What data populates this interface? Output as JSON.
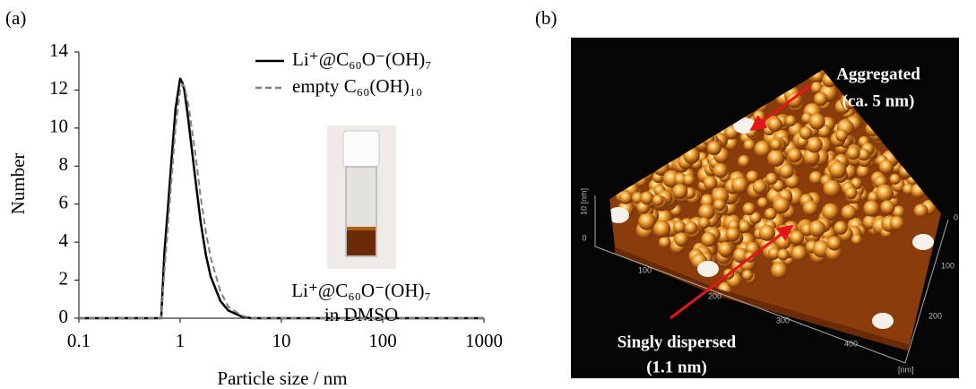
{
  "panel_labels": [
    "(a)",
    "(b)"
  ],
  "chart_data": {
    "type": "line",
    "x_label": "Particle size / nm",
    "y_label": "Number",
    "x": [
      0.1,
      0.6,
      0.65,
      0.7,
      0.75,
      0.8,
      0.9,
      1.0,
      1.05,
      1.1,
      1.2,
      1.4,
      1.6,
      1.8,
      2.0,
      2.5,
      3,
      4,
      5,
      10,
      100,
      1000
    ],
    "series": [
      {
        "name": "Li⁺@C₆₀O⁻(OH)₇",
        "color": "#000000",
        "dash": "solid",
        "values": [
          0,
          0,
          0,
          3.5,
          5.5,
          7.5,
          11,
          12.6,
          12.4,
          12,
          10.5,
          7.5,
          5,
          3.3,
          2.2,
          0.9,
          0.4,
          0.1,
          0,
          0,
          0,
          0
        ]
      },
      {
        "name": "empty C₆₀(OH)₁₀",
        "color": "#808080",
        "dash": "dashed",
        "values": [
          0,
          0,
          0,
          2.5,
          4.5,
          6.5,
          10,
          12,
          12.3,
          12.2,
          11.3,
          8.8,
          6.3,
          4.5,
          3.2,
          1.4,
          0.6,
          0.15,
          0,
          0,
          0,
          0
        ]
      }
    ],
    "x_scale": "log",
    "xlim": [
      0.1,
      1000
    ],
    "xticks": [
      0.1,
      1,
      10,
      100,
      1000
    ],
    "ylim": [
      0,
      14
    ],
    "yticks": [
      0,
      2,
      4,
      6,
      8,
      10,
      12,
      14
    ],
    "grid": false,
    "legend": "upper right",
    "annotation": [
      "Li⁺@C₆₀O⁻(OH)₇",
      "in DMSO"
    ]
  },
  "afm_image": {
    "z_axis": [
      "10 [nm]",
      "0"
    ],
    "x_axis": [
      "100",
      "200",
      "300",
      "400",
      "[nm]"
    ],
    "y_axis": [
      "0",
      "100",
      "200"
    ],
    "annotations": [
      {
        "lines": [
          "Aggregated",
          "(ca. 5 nm)"
        ]
      },
      {
        "lines": [
          "Singly dispersed",
          "(1.1 nm)"
        ]
      }
    ]
  }
}
